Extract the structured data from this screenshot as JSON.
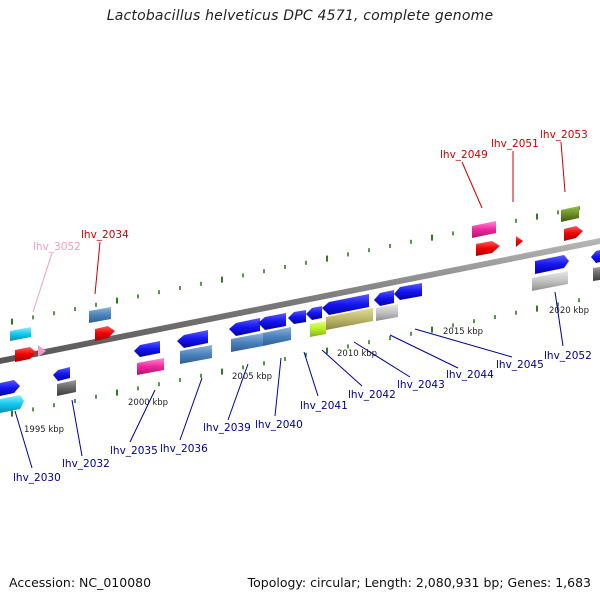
{
  "title": "Lactobacillus helveticus DPC 4571, complete genome",
  "footer": {
    "accession": "Accession: NC_010080",
    "topology": "Topology: circular; Length: 2,080,931 bp; Genes: 1,683"
  },
  "colors": {
    "backbone": "#8a8a8a",
    "tick": "#2e7d1e",
    "label_dark": "#000099",
    "label_red": "#cc0000",
    "label_pink": "#f29bc4"
  },
  "scale_labels": [
    "1995 kbp",
    "2000 kbp",
    "2005 kbp",
    "2010 kbp",
    "2015 kbp",
    "2020 kbp"
  ],
  "genes": [
    {
      "name": "lhv_3052",
      "color": "#f29bc4"
    },
    {
      "name": "lhv_2034",
      "color": "#cc0000"
    },
    {
      "name": "lhv_2049",
      "color": "#cc0000"
    },
    {
      "name": "lhv_2051",
      "color": "#cc0000"
    },
    {
      "name": "lhv_2053",
      "color": "#cc0000"
    },
    {
      "name": "lhv_2030",
      "color": "#000099"
    },
    {
      "name": "lhv_2032",
      "color": "#000099"
    },
    {
      "name": "lhv_2035",
      "color": "#000099"
    },
    {
      "name": "lhv_2036",
      "color": "#000099"
    },
    {
      "name": "lhv_2039",
      "color": "#000099"
    },
    {
      "name": "lhv_2040",
      "color": "#000099"
    },
    {
      "name": "lhv_2041",
      "color": "#000099"
    },
    {
      "name": "lhv_2042",
      "color": "#000099"
    },
    {
      "name": "lhv_2043",
      "color": "#000099"
    },
    {
      "name": "lhv_2044",
      "color": "#000099"
    },
    {
      "name": "lhv_2045",
      "color": "#000099"
    },
    {
      "name": "lhv_2052",
      "color": "#000099"
    }
  ]
}
